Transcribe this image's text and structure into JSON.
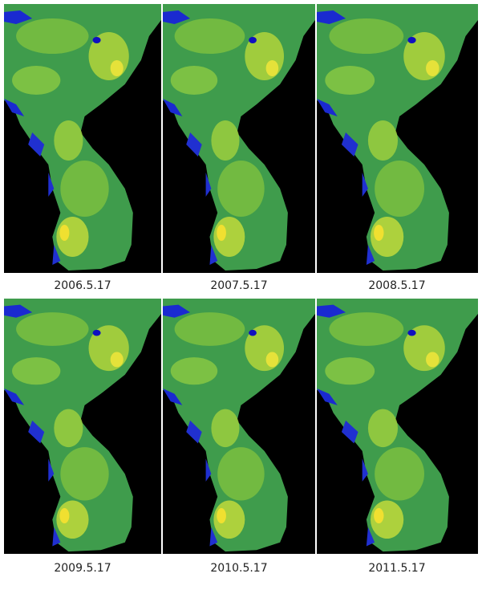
{
  "panels": [
    {
      "caption": "2006.5.17"
    },
    {
      "caption": "2007.5.17"
    },
    {
      "caption": "2008.5.17"
    },
    {
      "caption": "2009.5.17"
    },
    {
      "caption": "2010.5.17"
    },
    {
      "caption": "2011.5.17"
    }
  ]
}
